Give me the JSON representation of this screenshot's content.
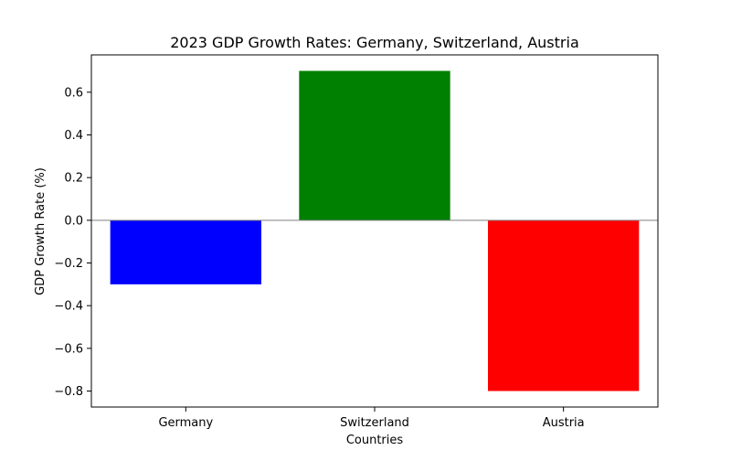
{
  "chart_data": {
    "type": "bar",
    "title": "2023 GDP Growth Rates: Germany, Switzerland, Austria",
    "xlabel": "Countries",
    "ylabel": "GDP Growth Rate (%)",
    "categories": [
      "Germany",
      "Switzerland",
      "Austria"
    ],
    "values": [
      -0.3,
      0.7,
      -0.8
    ],
    "colors": [
      "#0000ff",
      "#008000",
      "#ff0000"
    ],
    "ylim": [
      -0.875,
      0.775
    ],
    "yticks": [
      -0.8,
      -0.6,
      -0.4,
      -0.2,
      0.0,
      0.2,
      0.4,
      0.6
    ],
    "ytick_labels": [
      "−0.8",
      "−0.6",
      "−0.4",
      "−0.2",
      "0.0",
      "0.2",
      "0.4",
      "0.6"
    ],
    "zero_line": true,
    "grid": false,
    "legend": "none"
  }
}
